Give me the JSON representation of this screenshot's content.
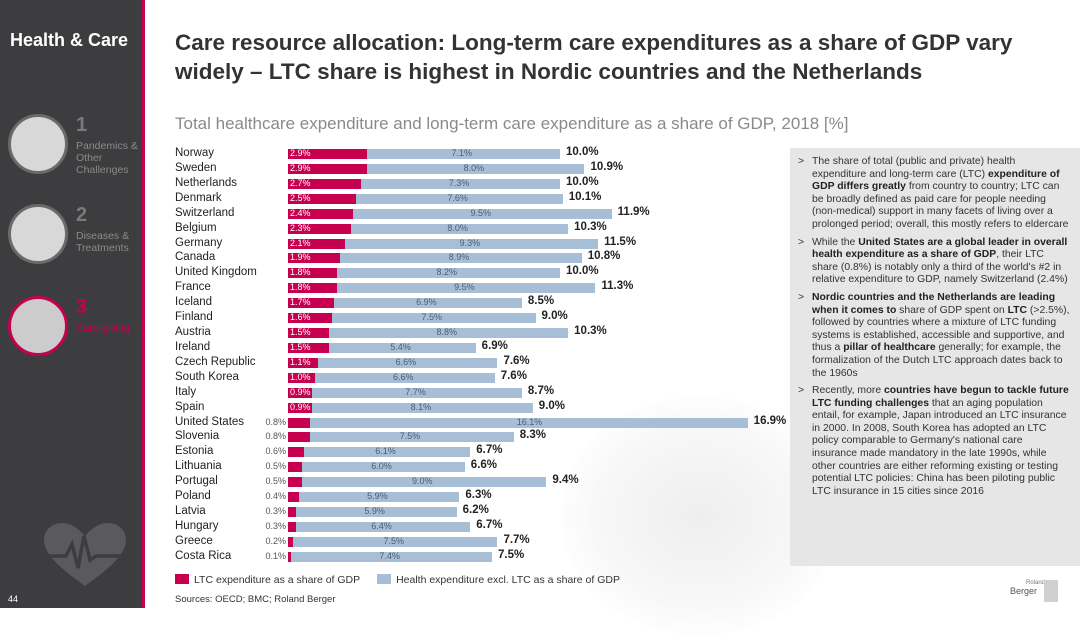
{
  "sidebar": {
    "title": "Health & Care",
    "sections": [
      {
        "num": "1",
        "label": "Pandemics & Other Challenges"
      },
      {
        "num": "2",
        "label": "Diseases & Treatments"
      },
      {
        "num": "3",
        "label": "Care-giving"
      }
    ],
    "page_number": "44"
  },
  "headline": "Care resource allocation: Long-term care expenditures as a share of GDP vary widely – LTC share is highest in Nordic countries and the Netherlands",
  "subtitle": "Total healthcare expenditure and long-term care expenditure as a share of GDP, 2018 [%]",
  "chart_data": {
    "type": "bar",
    "orientation": "horizontal",
    "stacked": true,
    "title": "Total healthcare expenditure and long-term care expenditure as a share of GDP, 2018 [%]",
    "unit": "%",
    "categories": [
      "Norway",
      "Sweden",
      "Netherlands",
      "Denmark",
      "Switzerland",
      "Belgium",
      "Germany",
      "Canada",
      "United Kingdom",
      "France",
      "Iceland",
      "Finland",
      "Austria",
      "Ireland",
      "Czech Republic",
      "South Korea",
      "Italy",
      "Spain",
      "United States",
      "Slovenia",
      "Estonia",
      "Lithuania",
      "Portugal",
      "Poland",
      "Latvia",
      "Hungary",
      "Greece",
      "Costa Rica"
    ],
    "series": [
      {
        "name": "LTC expenditure as a share of GDP",
        "color": "#c6004f",
        "values": [
          2.9,
          2.9,
          2.7,
          2.5,
          2.4,
          2.3,
          2.1,
          1.9,
          1.8,
          1.8,
          1.7,
          1.6,
          1.5,
          1.5,
          1.1,
          1.0,
          0.9,
          0.9,
          0.8,
          0.8,
          0.6,
          0.5,
          0.5,
          0.4,
          0.3,
          0.3,
          0.2,
          0.1
        ],
        "labels": [
          "2.9%",
          "2.9%",
          "2.7%",
          "2.5%",
          "2.4%",
          "2.3%",
          "2.1%",
          "1.9%",
          "1.8%",
          "1.8%",
          "1.7%",
          "1.6%",
          "1.5%",
          "1.5%",
          "1.1%",
          "1.0%",
          "0.9%",
          "0.9%",
          "0.8%",
          "0.8%",
          "0.6%",
          "0.5%",
          "0.5%",
          "0.4%",
          "0.3%",
          "0.3%",
          "0.2%",
          "0.1%"
        ]
      },
      {
        "name": "Health expenditure excl. LTC as a share of GDP",
        "color": "#a6bfd6",
        "values": [
          7.1,
          8.0,
          7.3,
          7.6,
          9.5,
          8.0,
          9.3,
          8.9,
          8.2,
          9.5,
          6.9,
          7.5,
          8.8,
          5.4,
          6.6,
          6.6,
          7.7,
          8.1,
          16.1,
          7.5,
          6.1,
          6.0,
          9.0,
          5.9,
          5.9,
          6.4,
          7.5,
          7.4
        ],
        "labels": [
          "7.1%",
          "8.0%",
          "7.3%",
          "7.6%",
          "9.5%",
          "8.0%",
          "9.3%",
          "8.9%",
          "8.2%",
          "9.5%",
          "6.9%",
          "7.5%",
          "8.8%",
          "5.4%",
          "6.6%",
          "6.6%",
          "7.7%",
          "8.1%",
          "16.1%",
          "7.5%",
          "6.1%",
          "6.0%",
          "9.0%",
          "5.9%",
          "5.9%",
          "6.4%",
          "7.5%",
          "7.4%"
        ]
      }
    ],
    "totals": [
      10.0,
      10.9,
      10.0,
      10.1,
      11.9,
      10.3,
      11.5,
      10.8,
      10.0,
      11.3,
      8.5,
      9.0,
      10.3,
      6.9,
      7.6,
      7.6,
      8.7,
      9.0,
      16.9,
      8.3,
      6.7,
      6.6,
      9.4,
      6.3,
      6.2,
      6.7,
      7.7,
      7.5
    ],
    "total_labels": [
      "10.0%",
      "10.9%",
      "10.0%",
      "10.1%",
      "11.9%",
      "10.3%",
      "11.5%",
      "10.8%",
      "10.0%",
      "11.3%",
      "8.5%",
      "9.0%",
      "10.3%",
      "6.9%",
      "7.6%",
      "7.6%",
      "8.7%",
      "9.0%",
      "16.9%",
      "8.3%",
      "6.7%",
      "6.6%",
      "9.4%",
      "6.3%",
      "6.2%",
      "6.7%",
      "7.7%",
      "7.5%"
    ],
    "xlim": [
      0,
      17
    ]
  },
  "legend": {
    "ltc": "LTC expenditure as a share of GDP",
    "hc": "Health expenditure excl. LTC as a share of GDP"
  },
  "source": "Sources: OECD; BMC; Roland Berger",
  "bullets": [
    [
      {
        "t": "The share of total (public and private) health expenditure and long-term care (LTC) ",
        "b": false
      },
      {
        "t": "expenditure of GDP differs greatly",
        "b": true
      },
      {
        "t": " from country to country; LTC can be broadly defined as paid care for people needing (non-medical) support in many facets of living over a prolonged period; overall, this mostly refers to eldercare",
        "b": false
      }
    ],
    [
      {
        "t": "While the ",
        "b": false
      },
      {
        "t": "United States are a global leader in overall health expenditure as a share of GDP",
        "b": true
      },
      {
        "t": ", their LTC share (0.8%) is notably only a third of the world's #2 in relative expenditure to GDP, namely Switzerland (2.4%)",
        "b": false
      }
    ],
    [
      {
        "t": "Nordic countries and the Netherlands are leading when it comes to",
        "b": true
      },
      {
        "t": " share of GDP spent on ",
        "b": false
      },
      {
        "t": "LTC",
        "b": true
      },
      {
        "t": " (>2.5%), followed by countries where a mixture of LTC funding systems is established, accessible and supportive, and thus a ",
        "b": false
      },
      {
        "t": "pillar of healthcare",
        "b": true
      },
      {
        "t": " generally; for example, the formalization of the Dutch LTC approach dates back to the 1960s",
        "b": false
      }
    ],
    [
      {
        "t": "Recently, more ",
        "b": false
      },
      {
        "t": "countries have begun to tackle future LTC funding challenges",
        "b": true
      },
      {
        "t": " that an aging population entail, for example, Japan introduced an LTC insurance in 2000. In 2008, South Korea has adopted an LTC policy comparable to Germany's national care insurance made mandatory in the late 1990s, while other countries are either reforming existing or testing potential LTC policies: China has been piloting public LTC insurance in 15 cities since 2016",
        "b": false
      }
    ]
  ],
  "bullet_marker": ">",
  "logo": {
    "top": "Roland",
    "bottom": "Berger"
  },
  "colors": {
    "accent": "#c6004f",
    "health": "#a6bfd6",
    "sidebar": "#3d3d3f",
    "panel": "#e6e6e6"
  }
}
